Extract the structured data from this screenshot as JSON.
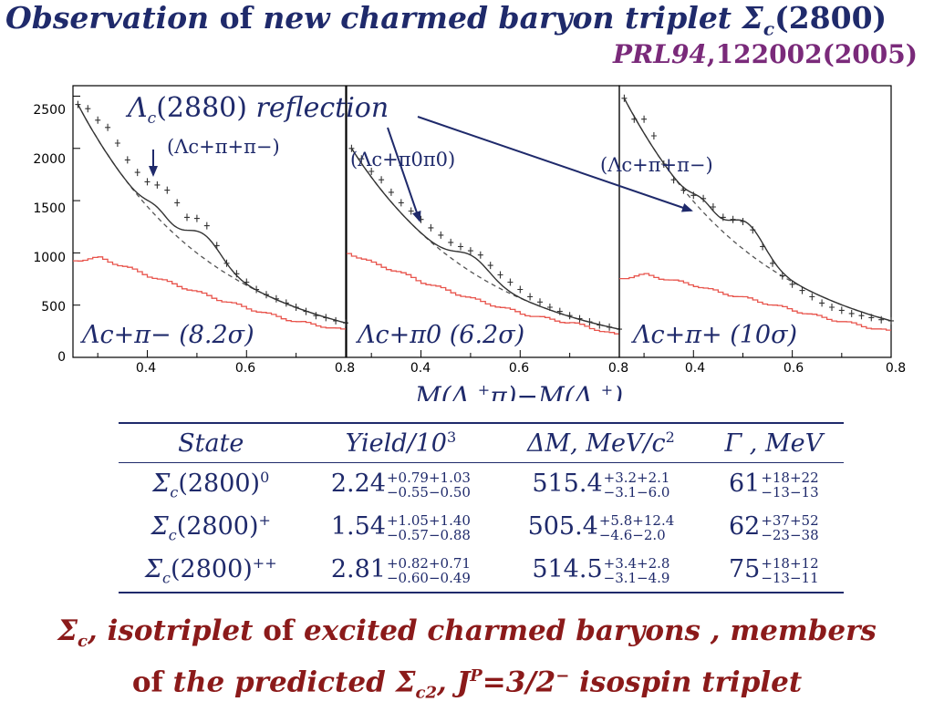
{
  "title": {
    "t1": "Observation",
    "t2": " of ",
    "t3": "new charmed baryon triplet ",
    "sym": "Σ",
    "sub": "c",
    "t4": "(2800)"
  },
  "reference": {
    "journal": "PRL94",
    "rest": ",122002(2005)"
  },
  "colors": {
    "navy": "#1f2a6b",
    "data": "#333333",
    "background_hist": "#e8544c",
    "arrow": "#1f2a6b",
    "ref": "#7a2a7a",
    "conclusion": "#8b1a1a"
  },
  "chart_data": [
    {
      "type": "line",
      "panel": "Λc+π−",
      "label": "Λc+π− (8.2σ)",
      "decay_note": "(Λc+π+π−)",
      "xlim": [
        0.25,
        0.8
      ],
      "ylim": [
        0,
        2600
      ],
      "x_ticks": [
        "0.4",
        "0.6",
        "0.8"
      ],
      "y_ticks": [
        "0",
        "500",
        "1000",
        "1500",
        "2000",
        "2500"
      ],
      "peaks": [
        {
          "mass": 0.515,
          "width": 0.035,
          "amplitude": 230
        },
        {
          "mass": 0.42,
          "width": 0.022,
          "amplitude": 90
        }
      ],
      "series": [
        {
          "x": [
            0.26,
            0.28,
            0.3,
            0.32,
            0.34,
            0.36,
            0.38,
            0.4,
            0.42,
            0.44,
            0.46,
            0.48,
            0.5,
            0.52,
            0.54,
            0.56,
            0.58,
            0.6,
            0.62,
            0.64,
            0.66,
            0.68,
            0.7,
            0.72,
            0.74,
            0.76,
            0.78,
            0.8
          ],
          "y": [
            2420,
            2380,
            2270,
            2200,
            2050,
            1890,
            1770,
            1680,
            1650,
            1600,
            1480,
            1340,
            1330,
            1260,
            1070,
            900,
            800,
            720,
            650,
            600,
            560,
            520,
            480,
            440,
            400,
            380,
            350,
            330
          ]
        }
      ],
      "background": [
        {
          "x": [
            0.25,
            0.3,
            0.35,
            0.4,
            0.45,
            0.5,
            0.55,
            0.6,
            0.65,
            0.7,
            0.75,
            0.8
          ],
          "y": [
            930,
            950,
            870,
            780,
            700,
            620,
            540,
            470,
            400,
            340,
            300,
            250
          ]
        }
      ]
    },
    {
      "type": "line",
      "panel": "Λc+π0",
      "label": "Λc+π0 (6.2σ)",
      "decay_note": "(Λc+π0π0)",
      "xlim": [
        0.25,
        0.8
      ],
      "ylim": [
        0,
        2600
      ],
      "x_ticks": [
        "0.4",
        "0.6",
        "0.8"
      ],
      "peaks": [
        {
          "mass": 0.505,
          "width": 0.035,
          "amplitude": 160
        }
      ],
      "series": [
        {
          "x": [
            0.26,
            0.28,
            0.3,
            0.32,
            0.34,
            0.36,
            0.38,
            0.4,
            0.42,
            0.44,
            0.46,
            0.48,
            0.5,
            0.52,
            0.54,
            0.56,
            0.58,
            0.6,
            0.62,
            0.64,
            0.66,
            0.68,
            0.7,
            0.72,
            0.74,
            0.76,
            0.78,
            0.8
          ],
          "y": [
            2000,
            1900,
            1780,
            1700,
            1580,
            1480,
            1400,
            1320,
            1240,
            1170,
            1100,
            1060,
            1020,
            980,
            880,
            790,
            720,
            650,
            580,
            530,
            480,
            440,
            400,
            370,
            340,
            310,
            290,
            270
          ]
        }
      ],
      "background": [
        {
          "x": [
            0.25,
            0.3,
            0.35,
            0.4,
            0.45,
            0.5,
            0.55,
            0.6,
            0.65,
            0.7,
            0.75,
            0.8
          ],
          "y": [
            1000,
            900,
            820,
            720,
            640,
            560,
            490,
            420,
            370,
            330,
            270,
            200
          ]
        }
      ]
    },
    {
      "type": "line",
      "panel": "Λc+π+",
      "label": "Λc+π+ (10σ)",
      "decay_note": "(Λc+π+π−)",
      "xlim": [
        0.25,
        0.8
      ],
      "ylim": [
        0,
        2600
      ],
      "x_ticks": [
        "0.4",
        "0.6",
        "0.8"
      ],
      "peaks": [
        {
          "mass": 0.51,
          "width": 0.035,
          "amplitude": 280
        },
        {
          "mass": 0.42,
          "width": 0.022,
          "amplitude": 110
        }
      ],
      "series": [
        {
          "x": [
            0.26,
            0.28,
            0.3,
            0.32,
            0.34,
            0.36,
            0.38,
            0.4,
            0.42,
            0.44,
            0.46,
            0.48,
            0.5,
            0.52,
            0.54,
            0.56,
            0.58,
            0.6,
            0.62,
            0.64,
            0.66,
            0.68,
            0.7,
            0.72,
            0.74,
            0.76,
            0.78,
            0.8
          ],
          "y": [
            2480,
            2280,
            2280,
            2120,
            1850,
            1700,
            1600,
            1550,
            1520,
            1440,
            1340,
            1320,
            1300,
            1220,
            1060,
            900,
            780,
            700,
            640,
            580,
            520,
            480,
            450,
            420,
            400,
            380,
            360,
            350
          ]
        }
      ],
      "background": [
        {
          "x": [
            0.25,
            0.3,
            0.35,
            0.4,
            0.45,
            0.5,
            0.55,
            0.6,
            0.65,
            0.7,
            0.75,
            0.8
          ],
          "y": [
            760,
            790,
            740,
            690,
            620,
            570,
            510,
            450,
            390,
            340,
            290,
            240
          ]
        }
      ]
    }
  ],
  "annotation": {
    "sym": "Λ",
    "sub": "c",
    "rest": "(2880) ",
    "word": "reflection"
  },
  "xaxis": {
    "pre": "M(Λ",
    "sub": "c",
    "sup": "+",
    "mid": "π)−M(Λ",
    "sub2": "c",
    "sup2": "+",
    "post": ")"
  },
  "table": {
    "headers": [
      "State",
      "Yield/10",
      "3",
      "ΔM,  MeV/c",
      "2",
      "Γ ,  MeV"
    ],
    "rows": [
      {
        "state_sym": "Σ",
        "state_sub": "c",
        "state_mid": "(2800)",
        "state_sup": "0",
        "yield": "2.24",
        "yield_up": "+0.79+1.03",
        "yield_dn": "−0.55−0.50",
        "dm": "515.4",
        "dm_up": "+3.2+2.1",
        "dm_dn": "−3.1−6.0",
        "gamma": "61",
        "gamma_up": "+18+22",
        "gamma_dn": "−13−13"
      },
      {
        "state_sym": "Σ",
        "state_sub": "c",
        "state_mid": "(2800)",
        "state_sup": "+",
        "yield": "1.54",
        "yield_up": "+1.05+1.40",
        "yield_dn": "−0.57−0.88",
        "dm": "505.4",
        "dm_up": "+5.8+12.4",
        "dm_dn": "−4.6−2.0",
        "gamma": "62",
        "gamma_up": "+37+52",
        "gamma_dn": "−23−38"
      },
      {
        "state_sym": "Σ",
        "state_sub": "c",
        "state_mid": "(2800)",
        "state_sup": "++",
        "yield": "2.81",
        "yield_up": "+0.82+0.71",
        "yield_dn": "−0.60−0.49",
        "dm": "514.5",
        "dm_up": "+3.4+2.8",
        "dm_dn": "−3.1−4.9",
        "gamma": "75",
        "gamma_up": "+18+12",
        "gamma_dn": "−13−11"
      }
    ]
  },
  "conclusion": {
    "sym": "Σ",
    "sub": "c",
    "a": ", isotriplet",
    "b": " of ",
    "c": "excited charmed baryons , members",
    "d": "of ",
    "e": "the predicted ",
    "sym2": "Σ",
    "sub2": "c2",
    "f": ", J",
    "sup": "P",
    "g": "=3/2",
    "sup2": "−",
    "h": " isospin triplet"
  }
}
